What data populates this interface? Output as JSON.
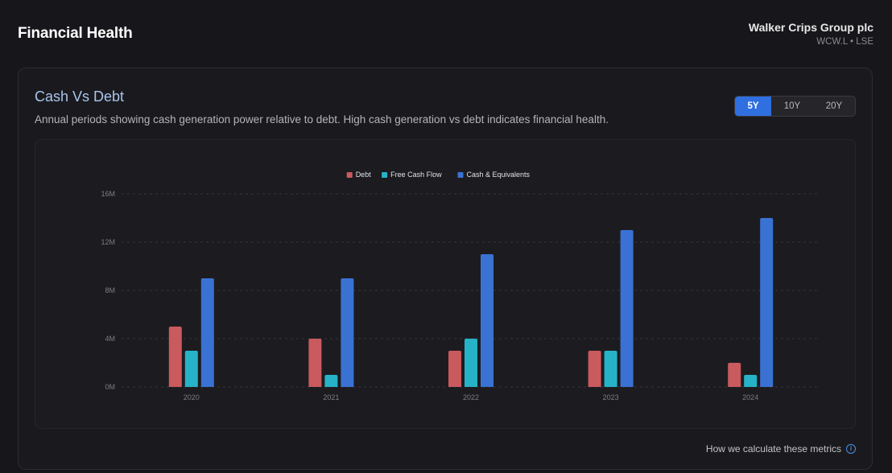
{
  "header": {
    "title": "Financial Health",
    "company_name": "Walker Crips Group plc",
    "ticker": "WCW.L • LSE"
  },
  "card": {
    "title": "Cash Vs Debt",
    "description": "Annual periods showing cash generation power relative to debt. High cash generation vs debt indicates financial health.",
    "range_tabs": [
      {
        "label": "5Y",
        "active": true
      },
      {
        "label": "10Y",
        "active": false
      },
      {
        "label": "20Y",
        "active": false
      }
    ],
    "footer_link": "How we calculate these metrics",
    "info_glyph": "i"
  },
  "colors": {
    "debt": "#c95a5e",
    "free_cash_flow": "#27b3c7",
    "cash": "#3a72d4",
    "accent": "#2f6fe0"
  },
  "chart_data": {
    "type": "bar",
    "categories": [
      "2020",
      "2021",
      "2022",
      "2023",
      "2024"
    ],
    "series": [
      {
        "name": "Debt",
        "values": [
          5,
          4,
          3,
          3,
          2
        ],
        "color": "#c95a5e"
      },
      {
        "name": "Free Cash Flow",
        "values": [
          3,
          1,
          4,
          3,
          1
        ],
        "color": "#27b3c7"
      },
      {
        "name": "Cash & Equivalents",
        "values": [
          9,
          9,
          11,
          13,
          14
        ],
        "color": "#3a72d4"
      }
    ],
    "unit": "M",
    "ylim": [
      0,
      16
    ],
    "yticks": [
      0,
      4,
      8,
      12,
      16
    ],
    "ytick_labels": [
      "0M",
      "4M",
      "8M",
      "12M",
      "16M"
    ],
    "grid": true,
    "legend_position": "top-center"
  }
}
